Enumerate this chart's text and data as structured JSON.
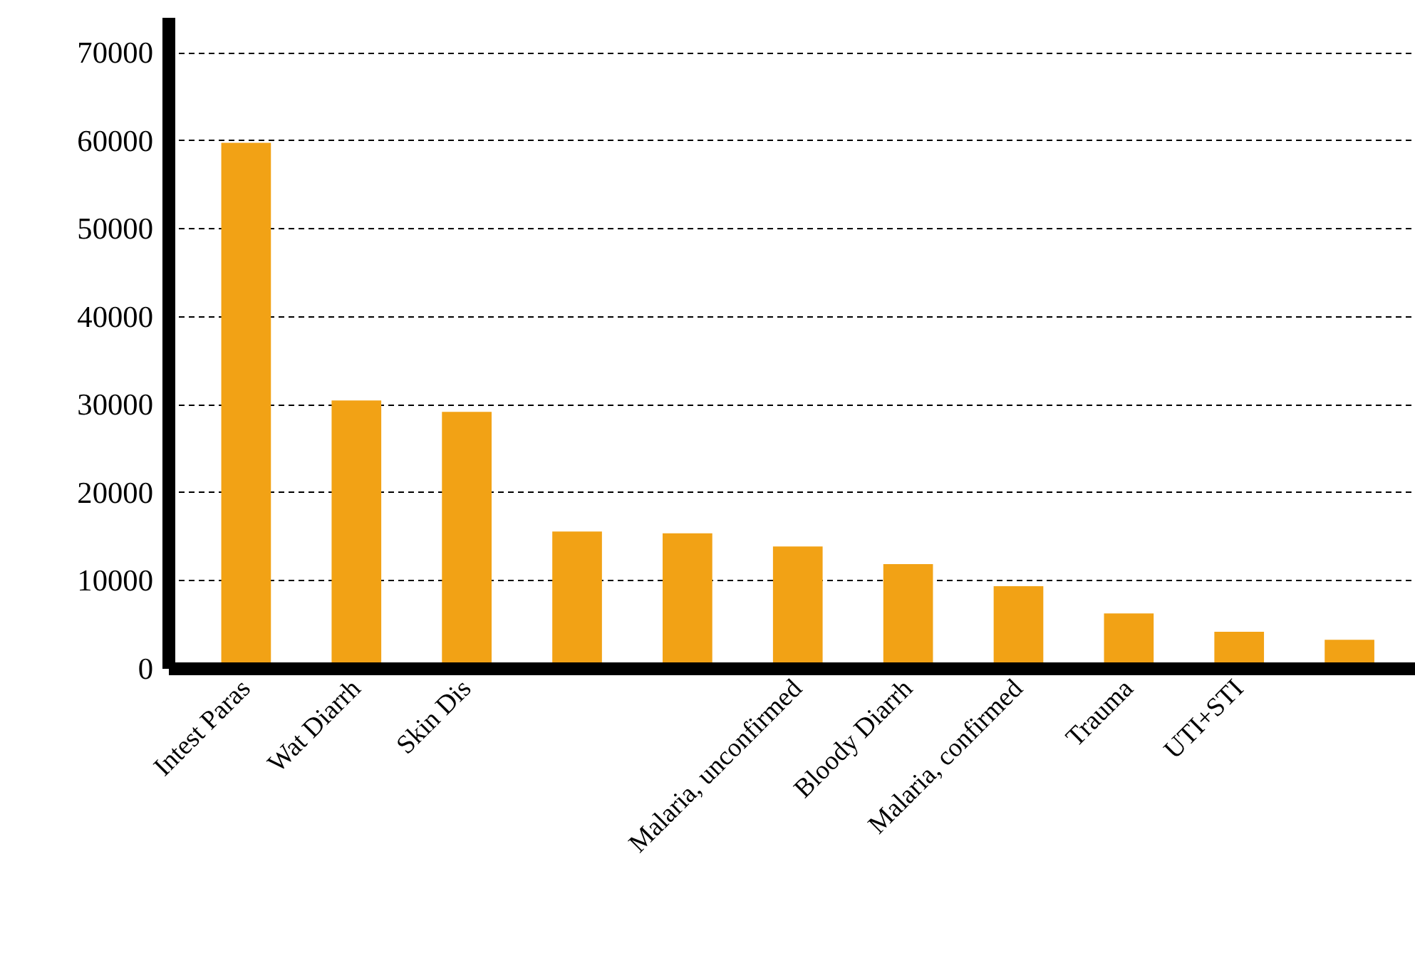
{
  "chart_data": {
    "type": "bar",
    "categories": [
      "Intest Paras",
      "Wat Diarrh",
      "Skin Dis",
      null,
      null,
      "Malaria, unconfirmed",
      "Bloody Diarrh",
      "Malaria, confirmed",
      "Trauma",
      "UTI+STI",
      null
    ],
    "values": [
      59800,
      30500,
      29200,
      15600,
      15400,
      13900,
      11900,
      9400,
      6300,
      4200,
      3300
    ],
    "color": "#f2a215",
    "ylim": [
      0,
      74000
    ],
    "yticks": [
      0,
      10000,
      20000,
      30000,
      40000,
      50000,
      60000,
      70000
    ],
    "grid": "y"
  }
}
